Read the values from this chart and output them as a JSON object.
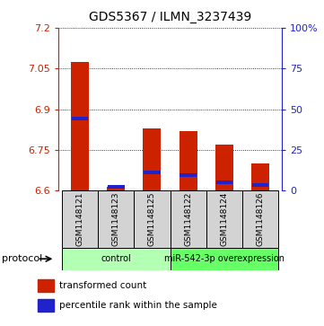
{
  "title": "GDS5367 / ILMN_3237439",
  "samples": [
    "GSM1148121",
    "GSM1148123",
    "GSM1148125",
    "GSM1148122",
    "GSM1148124",
    "GSM1148126"
  ],
  "red_top": [
    7.075,
    6.615,
    6.83,
    6.82,
    6.77,
    6.7
  ],
  "blue_marker": [
    6.865,
    6.615,
    6.668,
    6.658,
    6.632,
    6.622
  ],
  "base": 6.6,
  "ylim": [
    6.6,
    7.2
  ],
  "yticks_left": [
    6.6,
    6.75,
    6.9,
    7.05,
    7.2
  ],
  "yticks_right": [
    0,
    25,
    50,
    75,
    100
  ],
  "right_ylim": [
    0,
    100
  ],
  "groups": [
    {
      "label": "control",
      "start": 0,
      "end": 3,
      "color": "#b3ffb3"
    },
    {
      "label": "miR-542-3p overexpression",
      "start": 3,
      "end": 6,
      "color": "#66ff66"
    }
  ],
  "bar_color": "#cc2200",
  "blue_color": "#2222cc",
  "bar_width": 0.5,
  "background_label": "#d3d3d3",
  "legend_items": [
    "transformed count",
    "percentile rank within the sample"
  ]
}
